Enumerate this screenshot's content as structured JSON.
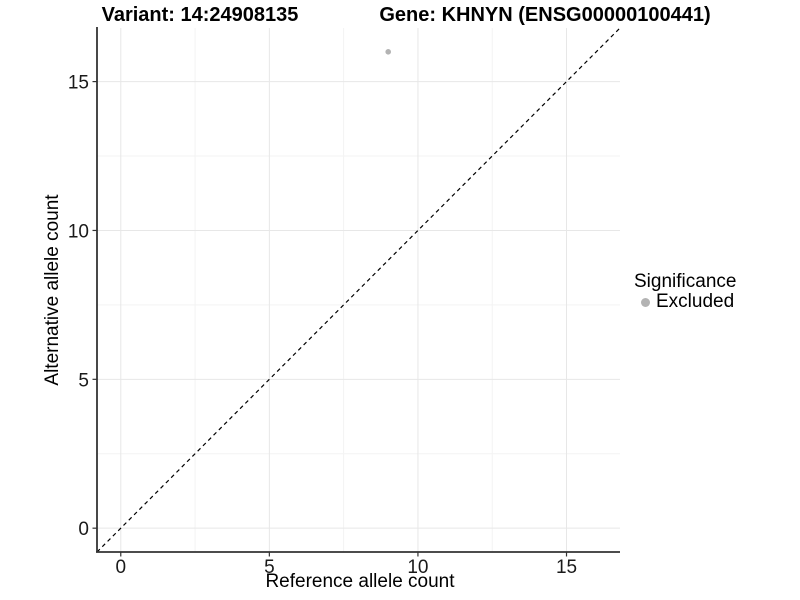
{
  "chart_data": {
    "type": "scatter",
    "titles": {
      "variant": "Variant: 14:24908135",
      "gene": "Gene: KHNYN (ENSG00000100441)"
    },
    "xlabel": "Reference allele count",
    "ylabel": "Alternative allele count",
    "xlim": [
      -0.8,
      16.8
    ],
    "ylim": [
      -0.8,
      16.8
    ],
    "x_ticks": [
      0,
      5,
      10,
      15
    ],
    "y_ticks": [
      0,
      5,
      10,
      15
    ],
    "x_minor_ticks": [
      2.5,
      7.5,
      12.5
    ],
    "y_minor_ticks": [
      2.5,
      7.5,
      12.5
    ],
    "grid": "major and minor, light gray, white background",
    "reference_line": {
      "kind": "identity y=x",
      "style": "dashed",
      "color": "#000000"
    },
    "series": [
      {
        "name": "Excluded",
        "color": "#b3b3b3",
        "points": [
          {
            "x": 9,
            "y": 16
          }
        ]
      }
    ],
    "legend": {
      "title": "Significance",
      "position": "right",
      "items": [
        {
          "label": "Excluded",
          "color": "#b3b3b3"
        }
      ]
    },
    "colors": {
      "grid_major": "#e7e7e7",
      "grid_minor": "#f3f3f3",
      "axis": "#333333",
      "tick_label": "#1a1a1a",
      "background": "#ffffff"
    }
  }
}
